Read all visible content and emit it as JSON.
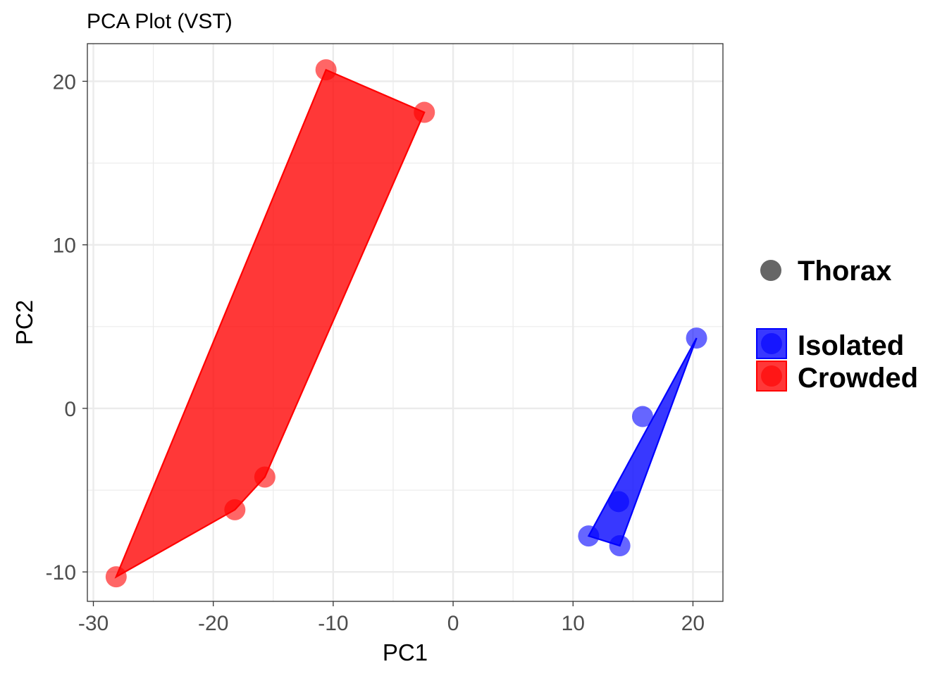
{
  "chart_data": {
    "type": "scatter",
    "title": "PCA Plot (VST)",
    "xlabel": "PC1",
    "ylabel": "PC2",
    "xlim": [
      -30.5,
      22.5
    ],
    "ylim": [
      -11.8,
      22.3
    ],
    "grid": true,
    "legend_position": "right",
    "x_ticks": [
      -30,
      -20,
      -10,
      0,
      10,
      20
    ],
    "x_tick_labels": [
      "-30",
      "-20",
      "-10",
      "0",
      "10",
      "20"
    ],
    "y_ticks": [
      -10,
      0,
      10,
      20
    ],
    "y_tick_labels": [
      "-10",
      "0",
      "10",
      "20"
    ],
    "x_minor_ticks": [
      -25,
      -15,
      -5,
      5,
      15
    ],
    "y_minor_ticks": [
      -5,
      5,
      15
    ],
    "shape_legend": {
      "label": "Thorax",
      "color": "#666666"
    },
    "series": [
      {
        "name": "Isolated",
        "color": "#0000ff",
        "points": [
          {
            "x": 20.3,
            "y": 4.3
          },
          {
            "x": 15.8,
            "y": -0.5
          },
          {
            "x": 13.8,
            "y": -5.7
          },
          {
            "x": 11.3,
            "y": -7.8
          },
          {
            "x": 13.9,
            "y": -8.4
          }
        ],
        "hull_order": [
          3,
          0,
          4
        ]
      },
      {
        "name": "Crowded",
        "color": "#ff0000",
        "points": [
          {
            "x": -10.6,
            "y": 20.7
          },
          {
            "x": -2.4,
            "y": 18.1
          },
          {
            "x": -15.7,
            "y": -4.2
          },
          {
            "x": -18.2,
            "y": -6.2
          },
          {
            "x": -28.1,
            "y": -10.3
          }
        ],
        "hull_order": [
          4,
          0,
          1,
          2,
          3
        ]
      }
    ]
  }
}
